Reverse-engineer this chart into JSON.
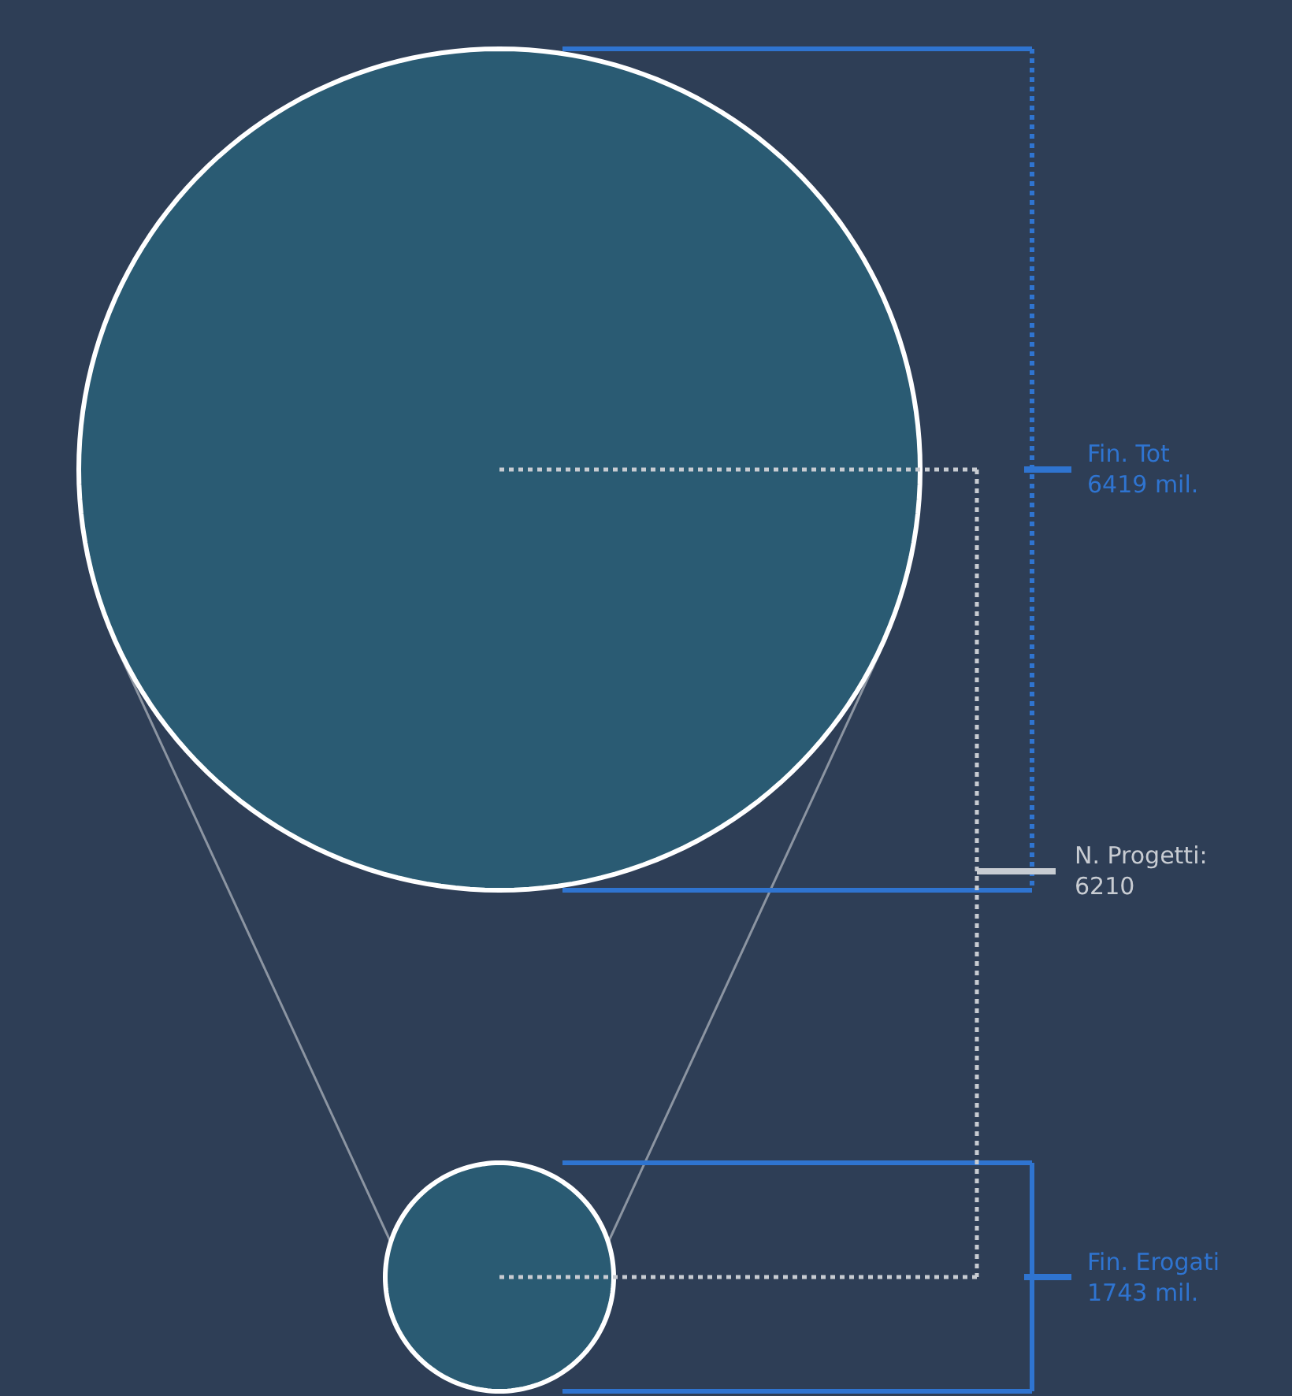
{
  "chart_data": {
    "type": "other",
    "categories": [
      "Fin. Tot",
      "Fin. Erogati"
    ],
    "values": [
      6419,
      1743
    ],
    "value_labels": [
      "6419 mil.",
      "1743 mil."
    ],
    "colors": [
      "#2a5b73",
      "#2a5b73"
    ],
    "annotations": [
      "N. Progetti:\n6210"
    ]
  }
}
